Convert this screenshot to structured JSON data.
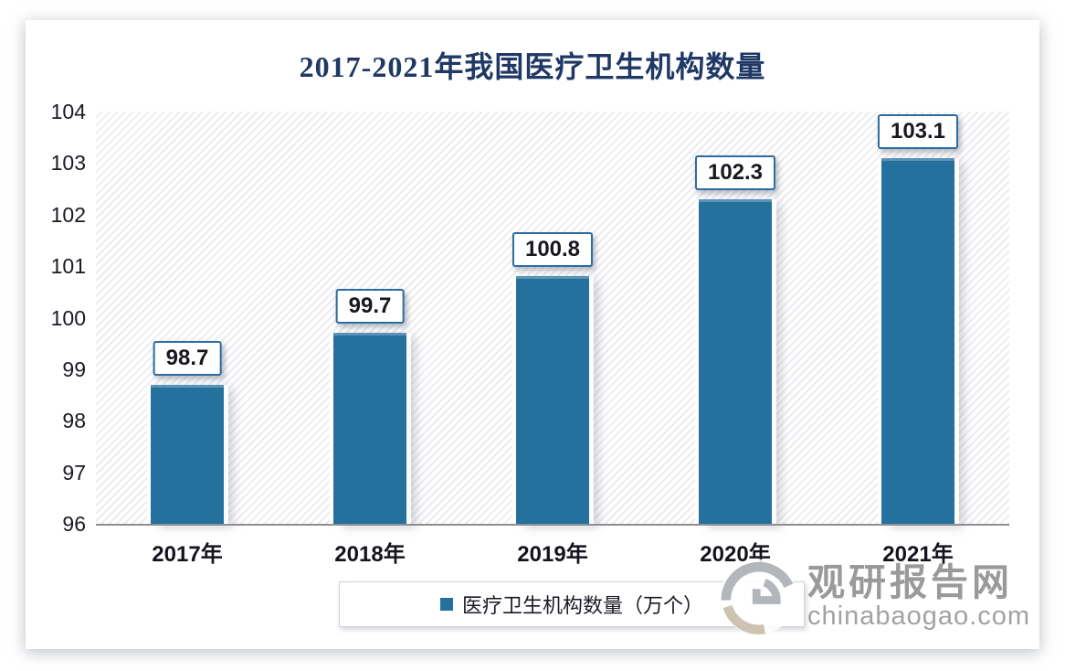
{
  "chart_data": {
    "type": "bar",
    "title": "2017-2021年我国医疗卫生机构数量",
    "categories": [
      "2017年",
      "2018年",
      "2019年",
      "2020年",
      "2021年"
    ],
    "values": [
      98.7,
      99.7,
      100.8,
      102.3,
      103.1
    ],
    "value_labels": [
      "98.7",
      "99.7",
      "100.8",
      "102.3",
      "103.1"
    ],
    "series_name": "医疗卫生机构数量（万个）",
    "xlabel": "",
    "ylabel": "",
    "ylim": [
      96,
      104
    ],
    "y_ticks": [
      96,
      97,
      98,
      99,
      100,
      101,
      102,
      103,
      104
    ],
    "grid": false,
    "legend_position": "bottom",
    "colors": {
      "bar": "#24719E",
      "label_box_border": "#2B6CA3",
      "title": "#1F3864",
      "axis_line": "#8F8F8F"
    }
  },
  "legend": {
    "label": "医疗卫生机构数量（万个）",
    "marker_color": "#24719E"
  },
  "watermark": {
    "name": "观研报告网",
    "domain": "chinabaogao.com",
    "logo": "swirl-logo"
  }
}
